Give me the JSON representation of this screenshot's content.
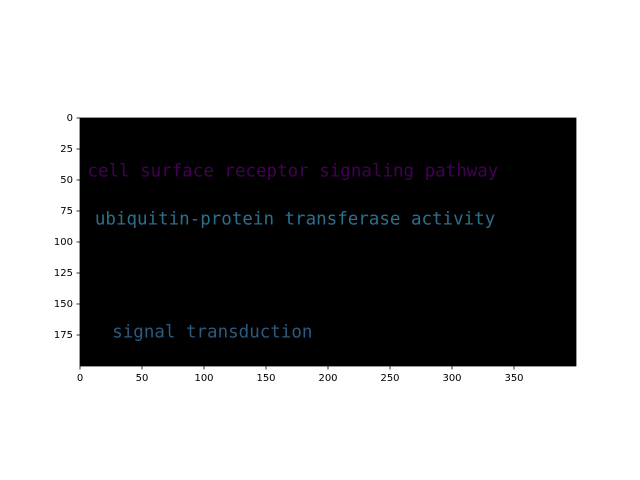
{
  "chart_data": {
    "type": "image-text",
    "background_color": "#000000",
    "xlim": [
      0,
      400
    ],
    "ylim": [
      200,
      0
    ],
    "x_ticks": [
      0,
      50,
      100,
      150,
      200,
      250,
      300,
      350
    ],
    "y_ticks": [
      0,
      25,
      50,
      75,
      100,
      125,
      150,
      175
    ],
    "annotations": [
      {
        "text": "cell surface receptor signaling pathway",
        "x": 6,
        "y": 43,
        "color": "#440154"
      },
      {
        "text": "ubiquitin-protein transferase activity",
        "x": 12,
        "y": 82,
        "color": "#2c6f8e"
      },
      {
        "text": "signal transduction",
        "x": 26,
        "y": 173,
        "color": "#2c5a80"
      }
    ]
  }
}
